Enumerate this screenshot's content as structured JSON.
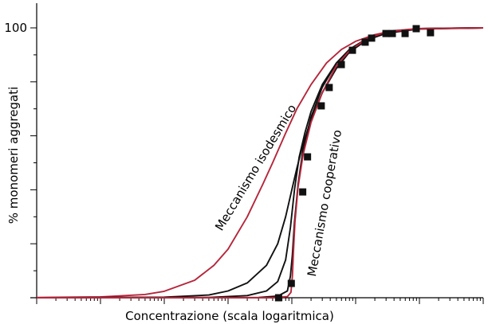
{
  "chart_data": {
    "type": "line",
    "title": "",
    "xlabel": "Concentrazione (scala logaritmica)",
    "ylabel": "% monomeri aggregati",
    "x_scale": "log",
    "xlim": [
      0.0001,
      1000
    ],
    "ylim": [
      0,
      100
    ],
    "y_tick_labels": [
      {
        "value": 100,
        "label": "100"
      }
    ],
    "grid": false,
    "annotations": [
      {
        "text": "Meccanismo isodesmico"
      },
      {
        "text": "Meccanismo cooperativo"
      }
    ],
    "colors": {
      "isodesmic": "#b5263b",
      "cooperative": "#b5263b",
      "intermediate": "#111111",
      "points": "#111111"
    },
    "series": [
      {
        "kind": "line",
        "color": "#b5263b",
        "x": [
          0.0001,
          0.001,
          0.005,
          0.01,
          0.03,
          0.06,
          0.1,
          0.2,
          0.35,
          0.5,
          0.8,
          1.2,
          2,
          3.5,
          6,
          10,
          20,
          40,
          100,
          300,
          1000
        ],
        "y": [
          0.1,
          0.3,
          1.2,
          2.4,
          6.5,
          12,
          18,
          30,
          42,
          50,
          61,
          70,
          79,
          87,
          92,
          95,
          97.5,
          99,
          99.7,
          99.9,
          100
        ]
      },
      {
        "kind": "line",
        "color": "#111111",
        "x": [
          0.0001,
          0.01,
          0.05,
          0.1,
          0.2,
          0.4,
          0.6,
          0.8,
          1.0,
          1.2,
          1.5,
          2,
          3,
          5,
          8,
          15,
          30,
          100,
          1000
        ],
        "y": [
          0,
          0.2,
          1,
          2.5,
          5.5,
          12,
          20,
          30,
          40,
          48,
          57,
          66,
          76,
          85,
          91,
          95.5,
          98,
          99.6,
          100
        ]
      },
      {
        "kind": "line",
        "color": "#111111",
        "x": [
          0.0001,
          0.05,
          0.2,
          0.4,
          0.6,
          0.8,
          0.95,
          1.1,
          1.3,
          1.6,
          2,
          3,
          5,
          8,
          15,
          30,
          100,
          1000
        ],
        "y": [
          0,
          0.1,
          0.8,
          2.5,
          6,
          14,
          26,
          40,
          52,
          61,
          69,
          79,
          87,
          92,
          96,
          98.4,
          99.7,
          100
        ]
      },
      {
        "kind": "line",
        "color": "#111111",
        "x": [
          0.0001,
          0.3,
          0.6,
          0.85,
          0.95,
          1.02,
          1.1,
          1.25,
          1.5,
          2,
          3,
          5,
          8,
          15,
          30,
          100,
          1000
        ],
        "y": [
          0,
          0.1,
          0.6,
          2.5,
          8,
          16,
          28,
          42,
          55,
          67,
          78,
          87,
          92,
          96,
          98.5,
          99.7,
          100
        ]
      },
      {
        "kind": "line",
        "color": "#b5263b",
        "x": [
          0.0001,
          0.5,
          0.85,
          0.97,
          1.02,
          1.06,
          1.12,
          1.25,
          1.5,
          2,
          3,
          5,
          8,
          15,
          30,
          100,
          1000
        ],
        "y": [
          0,
          0,
          0.4,
          2,
          8,
          17,
          28,
          41,
          53,
          65,
          76,
          86,
          91.5,
          96,
          98.5,
          99.7,
          100
        ]
      },
      {
        "kind": "scatter",
        "color": "#111111",
        "x": [
          0.62,
          0.98,
          1.48,
          1.76,
          2.89,
          3.85,
          5.96,
          8.91,
          14.1,
          17.8,
          29.9,
          37.6,
          59.6,
          89.1,
          149
        ],
        "y": [
          0,
          5.3,
          39.2,
          52.2,
          71.1,
          77.9,
          86.4,
          91.7,
          94.7,
          96.2,
          97.9,
          97.9,
          97.9,
          99.7,
          98.2
        ]
      }
    ]
  }
}
